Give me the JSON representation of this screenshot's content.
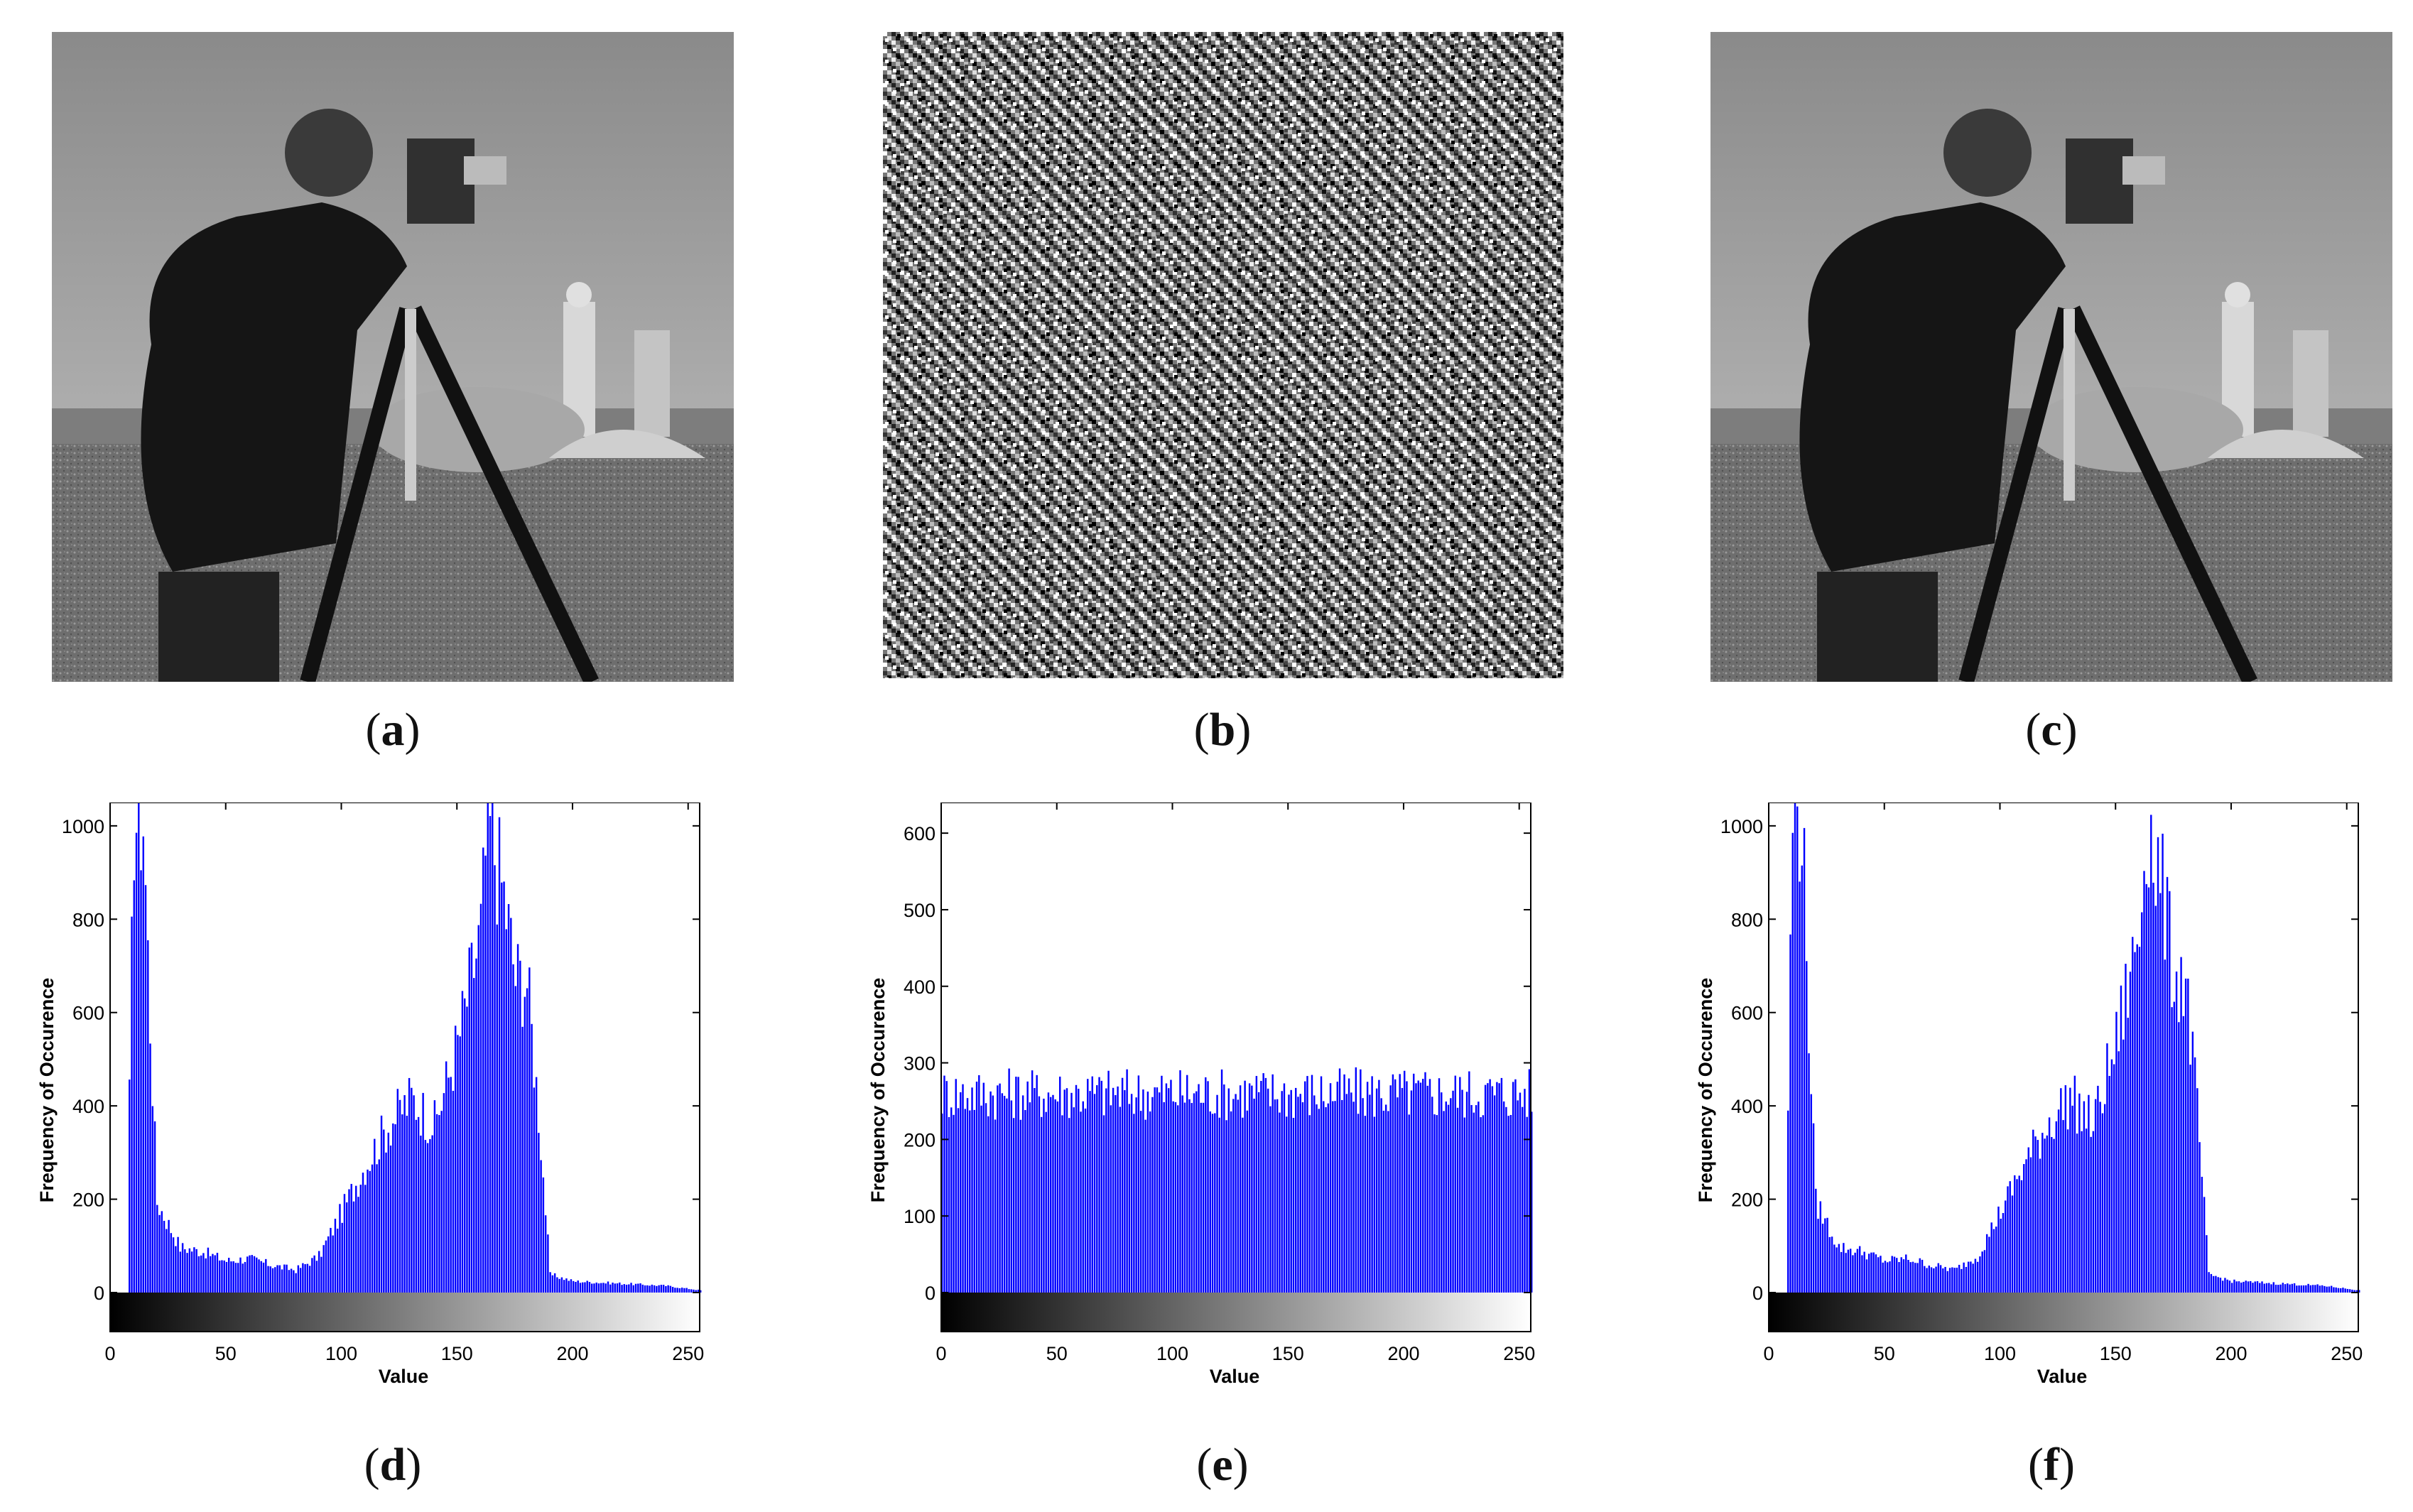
{
  "images": [
    {
      "id": "a",
      "caption": "a",
      "description": "cameraman-original",
      "icon": "cameraman-photo-icon"
    },
    {
      "id": "b",
      "caption": "b",
      "description": "encrypted-noise",
      "icon": "noise-image-icon"
    },
    {
      "id": "c",
      "caption": "c",
      "description": "cameraman-decrypted",
      "icon": "cameraman-photo-icon"
    }
  ],
  "colors": {
    "bar": "#0000ff",
    "axis": "#000000",
    "background": "#ffffff"
  },
  "chart_data": [
    {
      "type": "bar",
      "caption": "d",
      "xlabel": "Value",
      "ylabel": "Frequency of Occurence",
      "xlim": [
        0,
        255
      ],
      "ylim": [
        0,
        1050
      ],
      "xticks": [
        0,
        50,
        100,
        150,
        200,
        250
      ],
      "yticks": [
        0,
        200,
        400,
        600,
        800,
        1000
      ],
      "colorbar": "grayscale",
      "profile": "cameraman",
      "x": [
        8,
        10,
        14,
        17,
        20,
        30,
        40,
        50,
        60,
        70,
        80,
        90,
        100,
        110,
        120,
        130,
        140,
        150,
        160,
        163,
        170,
        175,
        180,
        185,
        190,
        200,
        220,
        240,
        255
      ],
      "values": [
        420,
        1050,
        1050,
        600,
        200,
        100,
        90,
        70,
        75,
        60,
        50,
        80,
        180,
        280,
        370,
        430,
        370,
        550,
        800,
        1050,
        880,
        700,
        690,
        400,
        40,
        25,
        20,
        15,
        5
      ]
    },
    {
      "type": "bar",
      "caption": "e",
      "xlabel": "Value",
      "ylabel": "Frequency of Occurence",
      "xlim": [
        0,
        255
      ],
      "ylim": [
        0,
        640
      ],
      "xticks": [
        0,
        50,
        100,
        150,
        200,
        250
      ],
      "yticks": [
        0,
        100,
        200,
        300,
        400,
        500,
        600
      ],
      "colorbar": "grayscale",
      "profile": "uniform",
      "x": [
        0,
        50,
        100,
        150,
        200,
        255
      ],
      "values": [
        256,
        256,
        256,
        256,
        256,
        256
      ]
    },
    {
      "type": "bar",
      "caption": "f",
      "xlabel": "Value",
      "ylabel": "Frequency of Occurence",
      "xlim": [
        0,
        255
      ],
      "ylim": [
        0,
        1050
      ],
      "xticks": [
        0,
        50,
        100,
        150,
        200,
        250
      ],
      "yticks": [
        0,
        200,
        400,
        600,
        800,
        1000
      ],
      "colorbar": "grayscale",
      "profile": "cameraman",
      "x": [
        8,
        10,
        14,
        17,
        20,
        30,
        40,
        50,
        60,
        70,
        80,
        90,
        100,
        110,
        120,
        130,
        140,
        150,
        160,
        163,
        170,
        175,
        180,
        185,
        190,
        200,
        220,
        240,
        255
      ],
      "values": [
        420,
        1050,
        1050,
        600,
        200,
        100,
        90,
        70,
        75,
        60,
        50,
        80,
        180,
        280,
        370,
        430,
        370,
        550,
        800,
        1050,
        880,
        700,
        690,
        400,
        40,
        25,
        20,
        15,
        5
      ]
    }
  ]
}
